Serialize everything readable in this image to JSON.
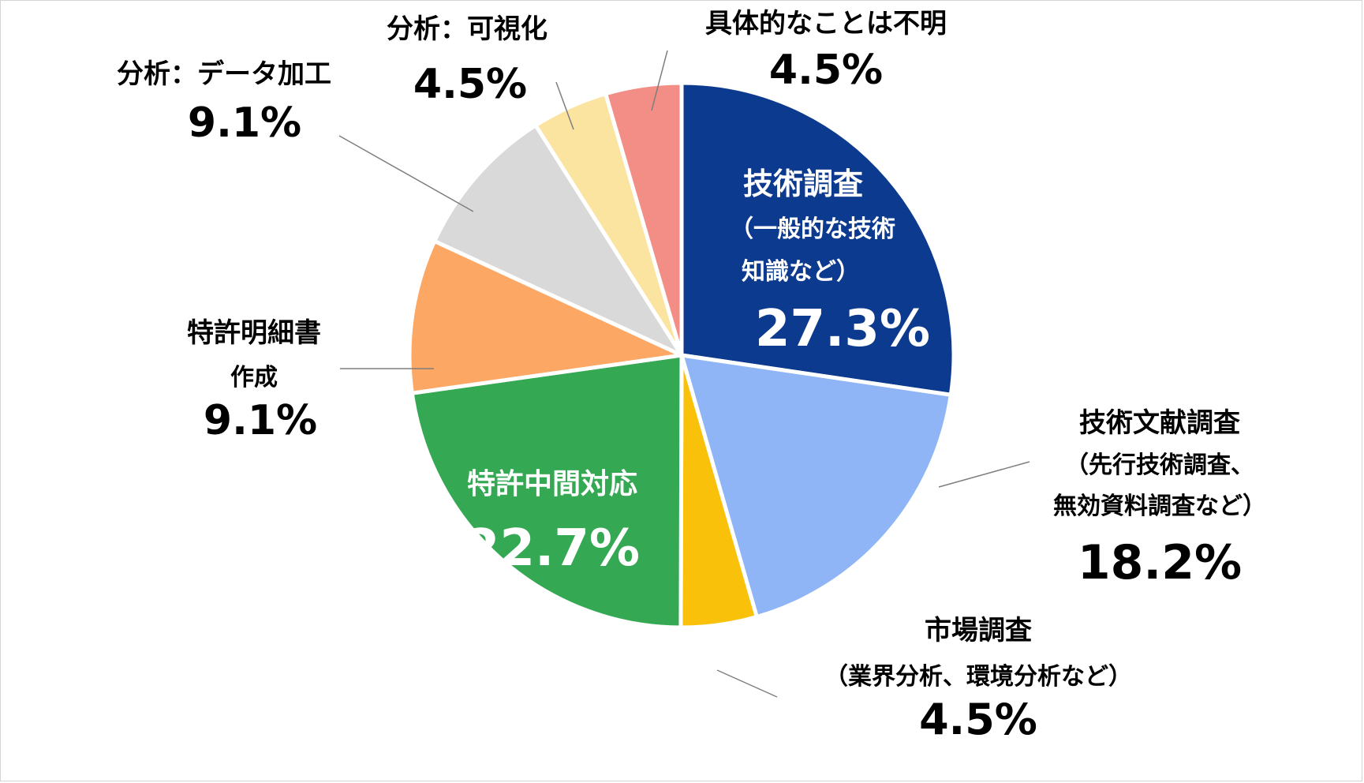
{
  "chart_data": {
    "type": "pie",
    "title": "",
    "start_angle_deg": 0,
    "direction": "clockwise",
    "slices": [
      {
        "name": "技術調査",
        "label_lines": [
          "技術調査",
          "（一般的な技術",
          "知識など）"
        ],
        "value": 27.3,
        "pct_label": "27.3%",
        "color": "#0c3a8e",
        "label_color": "#ffffff"
      },
      {
        "name": "技術文献調査",
        "label_lines": [
          "技術文献調査",
          "（先行技術調査、",
          "無効資料調査など）"
        ],
        "value": 18.2,
        "pct_label": "18.2%",
        "color": "#8fb5f7",
        "label_color": "#000000"
      },
      {
        "name": "市場調査",
        "label_lines": [
          "市場調査",
          "（業界分析、環境分析など）"
        ],
        "value": 4.5,
        "pct_label": "4.5%",
        "color": "#f9c10a",
        "label_color": "#000000"
      },
      {
        "name": "特許中間対応",
        "label_lines": [
          "特許中間対応"
        ],
        "value": 22.7,
        "pct_label": "22.7%",
        "color": "#35a853",
        "label_color": "#ffffff"
      },
      {
        "name": "特許明細書作成",
        "label_lines": [
          "特許明細書",
          "作成"
        ],
        "value": 9.1,
        "pct_label": "9.1%",
        "color": "#fda765",
        "label_color": "#000000"
      },
      {
        "name": "分析：データ加工",
        "label_lines": [
          "分析：データ加工"
        ],
        "value": 9.1,
        "pct_label": "9.1%",
        "color": "#d9d9d9",
        "label_color": "#000000"
      },
      {
        "name": "分析：可視化",
        "label_lines": [
          "分析：可視化"
        ],
        "value": 4.5,
        "pct_label": "4.5%",
        "color": "#fbe3a0",
        "label_color": "#000000"
      },
      {
        "name": "具体的なことは不明",
        "label_lines": [
          "具体的なことは不明"
        ],
        "value": 4.5,
        "pct_label": "4.5%",
        "color": "#f28e86",
        "label_color": "#000000"
      }
    ]
  }
}
